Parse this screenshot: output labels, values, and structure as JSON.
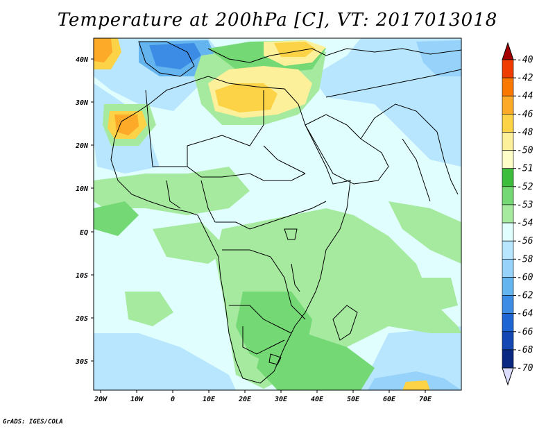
{
  "title": "Temperature at 200hPa [C], VT: 2017013018",
  "credit": "GrADS: IGES/COLA",
  "lon_labels": [
    "20W",
    "10W",
    "0",
    "10E",
    "20E",
    "30E",
    "40E",
    "50E",
    "60E",
    "70E"
  ],
  "lat_labels": [
    "40N",
    "30N",
    "20N",
    "10N",
    "EQ",
    "10S",
    "20S",
    "30S"
  ],
  "colorbar": {
    "labels": [
      "-40",
      "-42",
      "-44",
      "-46",
      "-48",
      "-50",
      "-51",
      "-52",
      "-53",
      "-54",
      "-56",
      "-58",
      "-60",
      "-62",
      "-64",
      "-66",
      "-68",
      "-70"
    ],
    "colors": [
      "#a50000",
      "#f03c00",
      "#fa7800",
      "#fcaa28",
      "#fcd246",
      "#fdf09a",
      "#fefec8",
      "#3cbd3c",
      "#74d874",
      "#a6eaa0",
      "#e0fefe",
      "#b8e6fe",
      "#96d2fa",
      "#64b4f0",
      "#3c8ce6",
      "#1e64d2",
      "#1446b4",
      "#0a2882",
      "#dcdcfe"
    ]
  }
}
